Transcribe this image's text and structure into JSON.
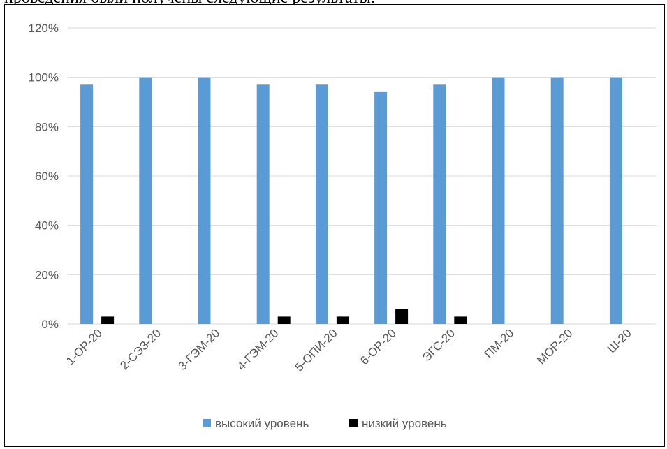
{
  "page": {
    "intro_text": "проведения были получены следующие результаты:"
  },
  "chart_data": {
    "type": "bar",
    "categories": [
      "1-ОР-20",
      "2-СЭЗ-20",
      "3-ГЭМ-20",
      "4-ГЭМ-20",
      "5-ОПИ-20",
      "6-ОР-20",
      "ЭГС-20",
      "ПМ-20",
      "МОР-20",
      "Ш-20"
    ],
    "series": [
      {
        "name": "высокий уровень",
        "color": "#5b9bd5",
        "values": [
          97,
          100,
          100,
          97,
          97,
          94,
          97,
          100,
          100,
          100
        ]
      },
      {
        "name": "низкий уровень",
        "color": "#000000",
        "values": [
          3,
          0,
          0,
          3,
          3,
          6,
          3,
          0,
          0,
          0
        ]
      }
    ],
    "yticks": [
      "0%",
      "20%",
      "40%",
      "60%",
      "80%",
      "100%",
      "120%"
    ],
    "ylim": [
      0,
      120
    ],
    "grid": true,
    "legend_position": "bottom"
  }
}
